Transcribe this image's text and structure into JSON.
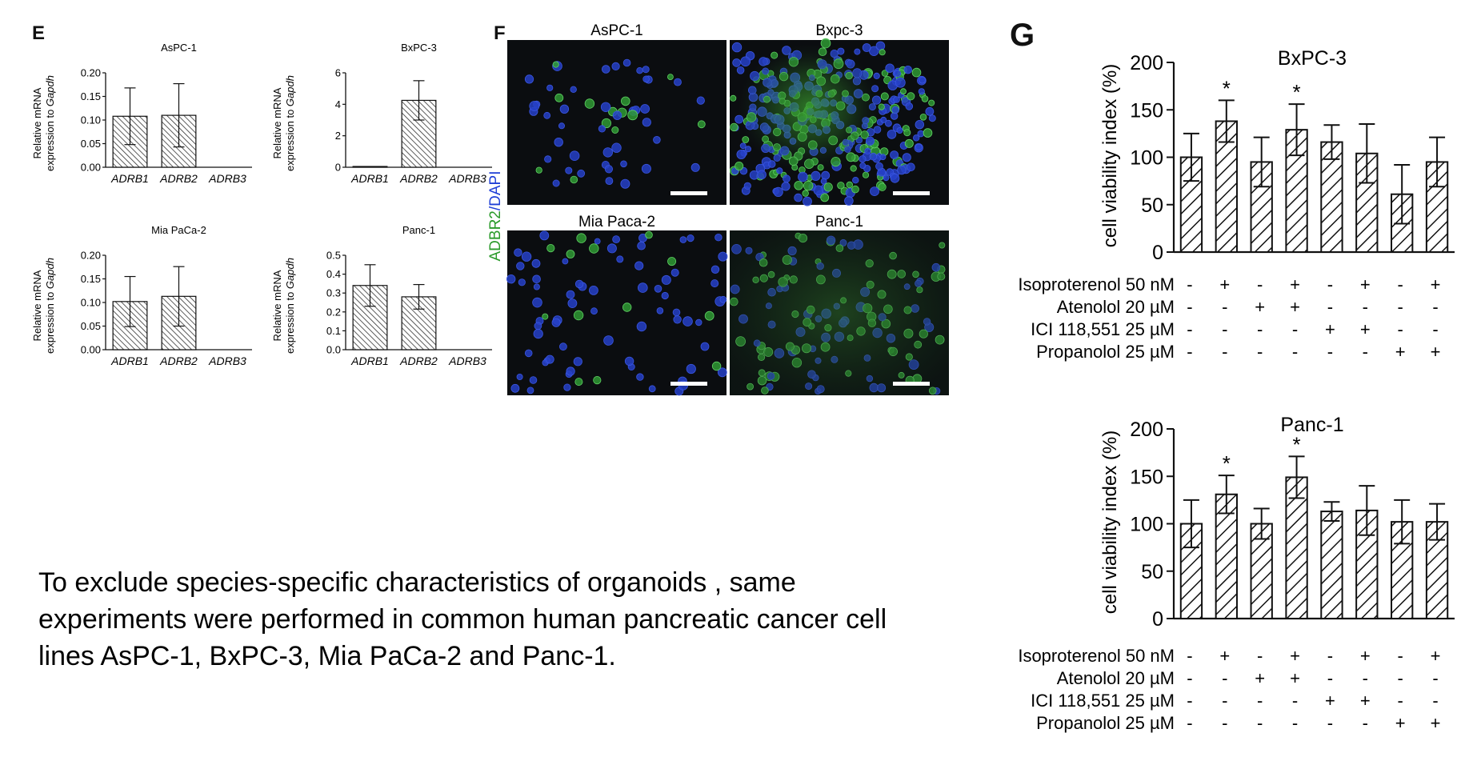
{
  "panels": {
    "e": "E",
    "f": "F",
    "g": "G"
  },
  "summary_text": "To exclude species-specific characteristics of organoids , same experiments were performed in common human pancreatic cancer cell lines AsPC-1, BxPC-3, Mia PaCa-2 and Panc-1.",
  "colors": {
    "bar_hatch": "#333333",
    "stain_green": "#2a9a2a",
    "stain_blue": "#1f3fd6",
    "image_bg": "#0b0d10"
  },
  "microscopy": {
    "stain_label_green": "ADBR2",
    "stain_label_slash": "/",
    "stain_label_blue": "DAPI",
    "images": [
      {
        "title": "AsPC-1",
        "pattern": "sparse"
      },
      {
        "title": "Bxpc-3",
        "pattern": "dense"
      },
      {
        "title": "Mia Paca-2",
        "pattern": "scattered"
      },
      {
        "title": "Panc-1",
        "pattern": "green-diffuse"
      }
    ]
  },
  "chart_data": [
    {
      "panel": "E",
      "type": "bar",
      "title": "AsPC-1",
      "ylabel_line1": "Relative mRNA",
      "ylabel_line2_prefix": "expression to ",
      "ylabel_line2_italic": "Gapdh",
      "categories": [
        "ADRB1",
        "ADRB2",
        "ADRB3"
      ],
      "values": [
        0.108,
        0.11,
        0
      ],
      "errors": [
        0.06,
        0.067,
        0
      ],
      "ylim": [
        0,
        0.2
      ],
      "yticks": [
        "0.00",
        "0.05",
        "0.10",
        "0.15",
        "0.20"
      ],
      "ytick_values": [
        0,
        0.05,
        0.1,
        0.15,
        0.2
      ]
    },
    {
      "panel": "E",
      "type": "bar",
      "title": "BxPC-3",
      "ylabel_line1": "Relative mRNA",
      "ylabel_line2_prefix": "expression to ",
      "ylabel_line2_italic": "Gapdh",
      "categories": [
        "ADRB1",
        "ADRB2",
        "ADRB3"
      ],
      "values": [
        0.05,
        4.25,
        0
      ],
      "errors": [
        0,
        1.25,
        0
      ],
      "ylim": [
        0,
        6
      ],
      "yticks": [
        "0",
        "2",
        "4",
        "6"
      ],
      "ytick_values": [
        0,
        2,
        4,
        6
      ]
    },
    {
      "panel": "E",
      "type": "bar",
      "title": "Mia PaCa-2",
      "ylabel_line1": "Relative mRNA",
      "ylabel_line2_prefix": "expression to ",
      "ylabel_line2_italic": "Gapdh",
      "categories": [
        "ADRB1",
        "ADRB2",
        "ADRB3"
      ],
      "values": [
        0.102,
        0.113,
        0
      ],
      "errors": [
        0.053,
        0.063,
        0
      ],
      "ylim": [
        0,
        0.2
      ],
      "yticks": [
        "0.00",
        "0.05",
        "0.10",
        "0.15",
        "0.20"
      ],
      "ytick_values": [
        0,
        0.05,
        0.1,
        0.15,
        0.2
      ]
    },
    {
      "panel": "E",
      "type": "bar",
      "title": "Panc-1",
      "ylabel_line1": "Relative mRNA",
      "ylabel_line2_prefix": "expression to ",
      "ylabel_line2_italic": "Gapdh",
      "categories": [
        "ADRB1",
        "ADRB2",
        "ADRB3"
      ],
      "values": [
        0.34,
        0.28,
        0
      ],
      "errors": [
        0.11,
        0.065,
        0
      ],
      "ylim": [
        0,
        0.5
      ],
      "yticks": [
        "0.0",
        "0.1",
        "0.2",
        "0.3",
        "0.4",
        "0.5"
      ],
      "ytick_values": [
        0,
        0.1,
        0.2,
        0.3,
        0.4,
        0.5
      ]
    },
    {
      "panel": "G",
      "type": "bar",
      "title": "BxPC-3",
      "ylabel": "cell viability index (%)",
      "values": [
        100,
        138,
        95,
        129,
        116,
        104,
        61,
        95
      ],
      "errors": [
        25,
        22,
        26,
        27,
        18,
        31,
        31,
        26
      ],
      "significance": [
        "",
        "*",
        "",
        "*",
        "",
        "",
        "",
        ""
      ],
      "ylim": [
        0,
        200
      ],
      "yticks": [
        "0",
        "50",
        "100",
        "150",
        "200"
      ],
      "ytick_values": [
        0,
        50,
        100,
        150,
        200
      ],
      "conditions": [
        {
          "label": "Isoproterenol 50 nM",
          "marks": [
            "-",
            "+",
            "-",
            "+",
            "-",
            "+",
            "-",
            "+"
          ]
        },
        {
          "label": "Atenolol 20 µM",
          "marks": [
            "-",
            "-",
            "+",
            "+",
            "-",
            "-",
            "-",
            "-"
          ]
        },
        {
          "label": "ICI 118,551 25 µM",
          "marks": [
            "-",
            "-",
            "-",
            "-",
            "+",
            "+",
            "-",
            "-"
          ]
        },
        {
          "label": "Propanolol 25 µM",
          "marks": [
            "-",
            "-",
            "-",
            "-",
            "-",
            "-",
            "+",
            "+"
          ]
        }
      ]
    },
    {
      "panel": "G",
      "type": "bar",
      "title": "Panc-1",
      "ylabel": "cell viability index (%)",
      "values": [
        100,
        131,
        100,
        149,
        113,
        114,
        102,
        102
      ],
      "errors": [
        25,
        20,
        16,
        22,
        10,
        26,
        23,
        19
      ],
      "significance": [
        "",
        "*",
        "",
        "*",
        "",
        "",
        "",
        ""
      ],
      "ylim": [
        0,
        200
      ],
      "yticks": [
        "0",
        "50",
        "100",
        "150",
        "200"
      ],
      "ytick_values": [
        0,
        50,
        100,
        150,
        200
      ],
      "conditions": [
        {
          "label": "Isoproterenol 50 nM",
          "marks": [
            "-",
            "+",
            "-",
            "+",
            "-",
            "+",
            "-",
            "+"
          ]
        },
        {
          "label": "Atenolol 20 µM",
          "marks": [
            "-",
            "-",
            "+",
            "+",
            "-",
            "-",
            "-",
            "-"
          ]
        },
        {
          "label": "ICI 118,551 25 µM",
          "marks": [
            "-",
            "-",
            "-",
            "-",
            "+",
            "+",
            "-",
            "-"
          ]
        },
        {
          "label": "Propanolol 25 µM",
          "marks": [
            "-",
            "-",
            "-",
            "-",
            "-",
            "-",
            "+",
            "+"
          ]
        }
      ]
    }
  ]
}
